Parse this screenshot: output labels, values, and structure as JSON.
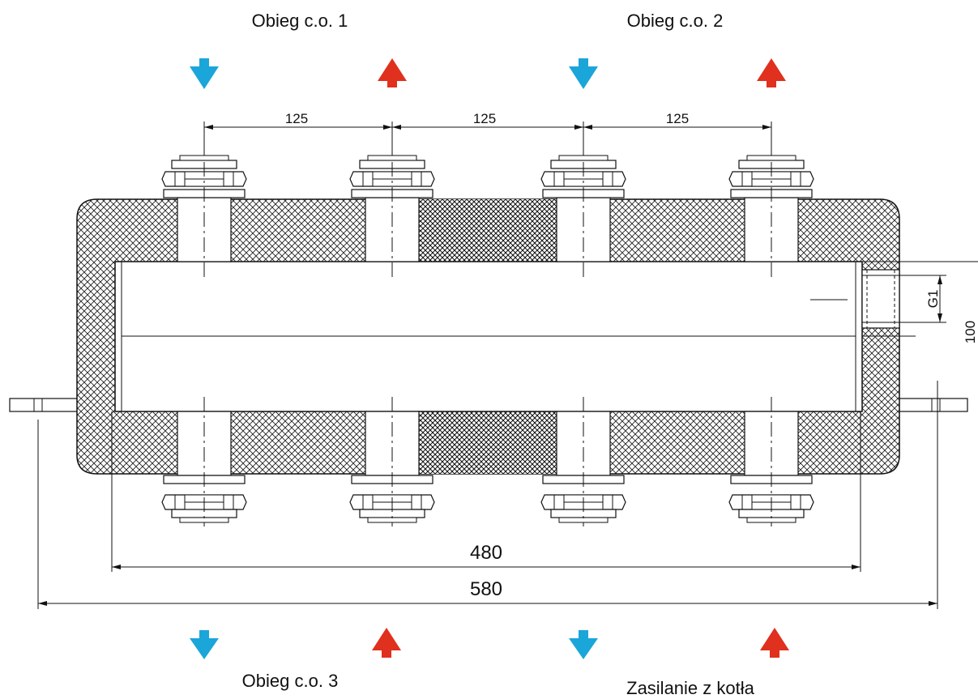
{
  "circuits": {
    "top_left": "Obieg c.o. 1",
    "top_right": "Obieg c.o. 2",
    "bottom_left": "Obieg c.o. 3",
    "bottom_right": "Zasilanie z kotła"
  },
  "dimensions": {
    "spacing_1": "125",
    "spacing_2": "125",
    "spacing_3": "125",
    "thread": "G1",
    "height": "100",
    "inner_length": "480",
    "overall_length": "580"
  },
  "colors": {
    "return_arrow": "#1ba6d9",
    "supply_arrow": "#e0301e",
    "insulation_hatch": "#222222",
    "line": "#111111"
  },
  "icons": {
    "return": "arrow-down-icon",
    "supply": "arrow-up-icon"
  }
}
